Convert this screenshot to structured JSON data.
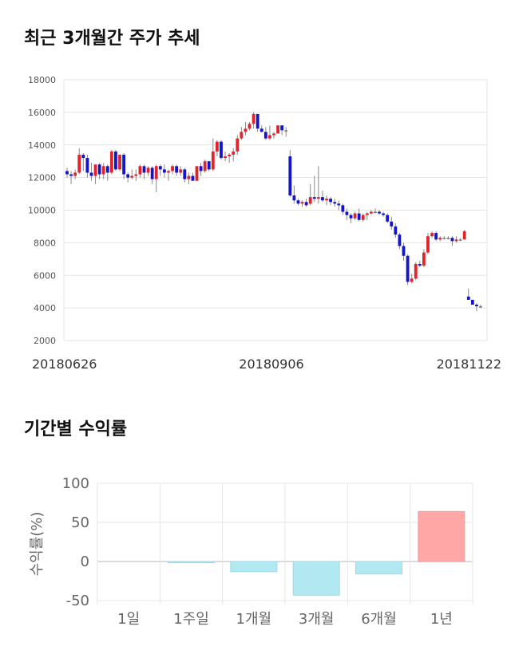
{
  "sections": {
    "price_title": "최근 3개월간 주가 추세",
    "return_title": "기간별 수익률"
  },
  "chart_data": [
    {
      "type": "candlestick",
      "title": "최근 3개월간 주가 추세",
      "ylim": [
        2000,
        18000
      ],
      "yticks": [
        2000,
        4000,
        6000,
        8000,
        10000,
        12000,
        14000,
        16000,
        18000
      ],
      "x_tick_labels": [
        "20180626",
        "20180906",
        "20181122"
      ],
      "grid": true,
      "colors": {
        "up": "#e0242b",
        "down": "#1414c8",
        "flat": "#777777"
      },
      "candles": [
        [
          12400,
          12600,
          12000,
          12200
        ],
        [
          12200,
          12400,
          11600,
          12100
        ],
        [
          12100,
          12500,
          11900,
          12300
        ],
        [
          12300,
          13800,
          12200,
          13400
        ],
        [
          13400,
          13500,
          12400,
          13200
        ],
        [
          13200,
          13400,
          12000,
          12300
        ],
        [
          12300,
          12900,
          11800,
          12100
        ],
        [
          12100,
          12800,
          11600,
          12800
        ],
        [
          12800,
          12900,
          11900,
          12200
        ],
        [
          12200,
          12900,
          11900,
          12700
        ],
        [
          12700,
          12800,
          11800,
          12300
        ],
        [
          12300,
          13700,
          12200,
          13600
        ],
        [
          13600,
          13700,
          12400,
          12500
        ],
        [
          12500,
          13400,
          12400,
          13400
        ],
        [
          13400,
          13500,
          11900,
          12200
        ],
        [
          12200,
          12300,
          11700,
          12000
        ],
        [
          12000,
          12500,
          11900,
          12100
        ],
        [
          12100,
          12500,
          11800,
          12200
        ],
        [
          12200,
          12800,
          12000,
          12700
        ],
        [
          12700,
          12800,
          11900,
          12300
        ],
        [
          12300,
          12700,
          12100,
          12600
        ],
        [
          12600,
          12700,
          11600,
          11900
        ],
        [
          11900,
          12800,
          11100,
          12700
        ],
        [
          12700,
          12800,
          12100,
          12500
        ],
        [
          12500,
          12800,
          12000,
          12300
        ],
        [
          12300,
          12500,
          11800,
          12400
        ],
        [
          12400,
          12800,
          12200,
          12700
        ],
        [
          12700,
          12800,
          12100,
          12300
        ],
        [
          12300,
          12700,
          12100,
          12500
        ],
        [
          12500,
          12600,
          11700,
          11900
        ],
        [
          11900,
          12300,
          11600,
          12100
        ],
        [
          12100,
          12300,
          11800,
          11800
        ],
        [
          11800,
          12700,
          11800,
          12700
        ],
        [
          12700,
          12900,
          12100,
          12400
        ],
        [
          12400,
          13100,
          12300,
          13000
        ],
        [
          13000,
          13000,
          12400,
          12500
        ],
        [
          12500,
          14400,
          12400,
          13600
        ],
        [
          13600,
          14300,
          13300,
          14200
        ],
        [
          14200,
          14300,
          13100,
          13200
        ],
        [
          13200,
          13600,
          13000,
          13300
        ],
        [
          13300,
          13500,
          12900,
          13400
        ],
        [
          13400,
          13800,
          13000,
          13600
        ],
        [
          13600,
          14600,
          13400,
          14400
        ],
        [
          14400,
          15100,
          14300,
          14800
        ],
        [
          14800,
          15400,
          14600,
          15000
        ],
        [
          15000,
          15400,
          14900,
          15300
        ],
        [
          15300,
          16000,
          15000,
          15900
        ],
        [
          15900,
          15900,
          14800,
          15000
        ],
        [
          15000,
          15200,
          14800,
          14800
        ],
        [
          14800,
          15100,
          14300,
          14400
        ],
        [
          14400,
          15200,
          14300,
          14600
        ],
        [
          14600,
          14800,
          14400,
          14700
        ],
        [
          14700,
          15200,
          14700,
          15200
        ],
        [
          15200,
          15200,
          14600,
          14900
        ],
        [
          14900,
          15100,
          14500,
          14900
        ],
        [
          13300,
          13700,
          10800,
          10900
        ],
        [
          10900,
          11500,
          10400,
          10600
        ],
        [
          10600,
          10700,
          10300,
          10400
        ],
        [
          10400,
          10600,
          10200,
          10500
        ],
        [
          10500,
          10700,
          10200,
          10300
        ],
        [
          10400,
          11600,
          10300,
          10800
        ],
        [
          10800,
          12100,
          10500,
          10700
        ],
        [
          10700,
          12700,
          10400,
          10800
        ],
        [
          10800,
          11200,
          10500,
          10600
        ],
        [
          10600,
          10900,
          10300,
          10700
        ],
        [
          10700,
          10800,
          10300,
          10500
        ],
        [
          10500,
          10700,
          10200,
          10400
        ],
        [
          10400,
          10600,
          10000,
          10300
        ],
        [
          10300,
          10400,
          9700,
          9900
        ],
        [
          9900,
          10100,
          9400,
          9700
        ],
        [
          9700,
          9800,
          9200,
          9500
        ],
        [
          9500,
          9900,
          9400,
          9800
        ],
        [
          9800,
          10100,
          9300,
          9400
        ],
        [
          9400,
          9800,
          9300,
          9700
        ],
        [
          9700,
          9900,
          9400,
          9800
        ],
        [
          9800,
          10000,
          9700,
          9900
        ],
        [
          9900,
          10100,
          9800,
          9900
        ],
        [
          9900,
          10000,
          9700,
          9800
        ],
        [
          9800,
          9900,
          9600,
          9700
        ],
        [
          9700,
          9800,
          9200,
          9300
        ],
        [
          9300,
          9600,
          8800,
          9000
        ],
        [
          9000,
          9200,
          8300,
          8500
        ],
        [
          8500,
          8600,
          7600,
          7800
        ],
        [
          7800,
          8000,
          6900,
          7200
        ],
        [
          7200,
          7300,
          5400,
          5600
        ],
        [
          5600,
          6100,
          5500,
          5800
        ],
        [
          5800,
          6800,
          5700,
          6700
        ],
        [
          6700,
          6900,
          6500,
          6600
        ],
        [
          6600,
          7600,
          6500,
          7400
        ],
        [
          7400,
          8600,
          7300,
          8400
        ],
        [
          8400,
          8700,
          8300,
          8600
        ],
        [
          8600,
          8700,
          8100,
          8200
        ],
        [
          8200,
          8400,
          8100,
          8300
        ],
        [
          8300,
          8400,
          8200,
          8300
        ],
        [
          8300,
          8400,
          8200,
          8300
        ],
        [
          8300,
          8400,
          7800,
          8100
        ],
        [
          8100,
          8400,
          8000,
          8200
        ],
        [
          8200,
          8300,
          8100,
          8200
        ],
        [
          8200,
          8800,
          8200,
          8700
        ],
        [
          4700,
          5200,
          4500,
          4500
        ],
        [
          4500,
          4500,
          4200,
          4200
        ],
        [
          4200,
          4300,
          3800,
          4100
        ],
        [
          4100,
          4200,
          4000,
          4100
        ]
      ]
    },
    {
      "type": "bar",
      "title": "기간별 수익률",
      "ylabel": "수익률(%)",
      "categories": [
        "1일",
        "1주일",
        "1개월",
        "3개월",
        "6개월",
        "1년"
      ],
      "values": [
        0,
        -1,
        -13,
        -43,
        -16,
        64
      ],
      "ylim": [
        -55,
        100
      ],
      "yticks": [
        -50,
        0,
        50,
        100
      ],
      "grid": true,
      "colors": {
        "positive": "#ffa6a6",
        "negative": "#b2e8f2"
      }
    }
  ]
}
